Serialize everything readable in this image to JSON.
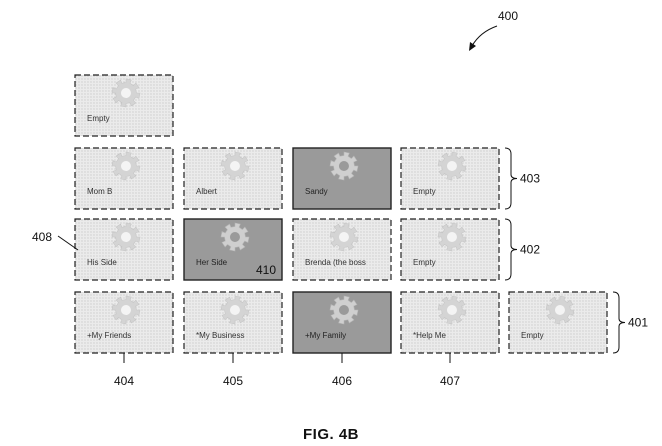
{
  "figure": {
    "number": "400",
    "caption": "FIG. 4B"
  },
  "rows": [
    {
      "ref": "",
      "tiles": [
        {
          "label": "Empty",
          "shade": "light"
        }
      ]
    },
    {
      "ref": "403",
      "tiles": [
        {
          "label": "Mom B",
          "shade": "light"
        },
        {
          "label": "Albert",
          "shade": "light"
        },
        {
          "label": "Sandy",
          "shade": "dark",
          "solid": true
        },
        {
          "label": "Empty",
          "shade": "light"
        }
      ]
    },
    {
      "ref": "402",
      "tiles": [
        {
          "label": "His Side",
          "shade": "light"
        },
        {
          "label": "Her Side",
          "shade": "dark",
          "solid": true,
          "ref": "410"
        },
        {
          "label": "Brenda (the boss",
          "shade": "light"
        },
        {
          "label": "Empty",
          "shade": "light"
        }
      ]
    },
    {
      "ref": "401",
      "tiles": [
        {
          "label": "+My Friends",
          "shade": "light"
        },
        {
          "label": "*My Business",
          "shade": "light"
        },
        {
          "label": "+My Family",
          "shade": "dark",
          "solid": true
        },
        {
          "label": "*Help Me",
          "shade": "light"
        },
        {
          "label": "Empty",
          "shade": "light"
        }
      ]
    }
  ],
  "side_refs": {
    "his_side": "408"
  },
  "column_refs": [
    "404",
    "405",
    "406",
    "407"
  ],
  "colors": {
    "light_fill": "#ebebeb",
    "dark_fill": "#9a9a9a",
    "gear_light": "#d4d4d4",
    "gear_dark": "#cfcfcf",
    "stroke": "#222222"
  },
  "icons": {
    "tile_icon": "gear-icon"
  }
}
